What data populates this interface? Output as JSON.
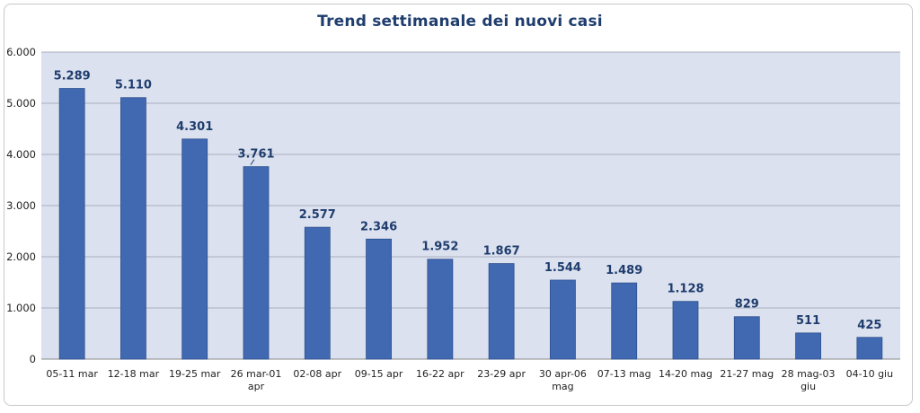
{
  "chart_data": {
    "type": "bar",
    "title": "Trend settimanale dei nuovi casi",
    "xlabel": "",
    "ylabel": "",
    "ylim": [
      0,
      6000
    ],
    "yticks": [
      0,
      1000,
      2000,
      3000,
      4000,
      5000,
      6000
    ],
    "ytick_labels": [
      "0",
      "1.000",
      "2.000",
      "3.000",
      "4.000",
      "5.000",
      "6.000"
    ],
    "grid": true,
    "legend": "none",
    "categories": [
      "05-11 mar",
      "12-18 mar",
      "19-25 mar",
      "26 mar-01 apr",
      "02-08 apr",
      "09-15 apr",
      "16-22 apr",
      "23-29 apr",
      "30 apr-06 mag",
      "07-13 mag",
      "14-20 mag",
      "21-27 mag",
      "28 mag-03 giu",
      "04-10 giu"
    ],
    "category_lines": [
      [
        "05-11 mar"
      ],
      [
        "12-18 mar"
      ],
      [
        "19-25 mar"
      ],
      [
        "26 mar-01",
        "apr"
      ],
      [
        "02-08 apr"
      ],
      [
        "09-15 apr"
      ],
      [
        "16-22 apr"
      ],
      [
        "23-29 apr"
      ],
      [
        "30 apr-06",
        "mag"
      ],
      [
        "07-13 mag"
      ],
      [
        "14-20 mag"
      ],
      [
        "21-27 mag"
      ],
      [
        "28 mag-03",
        "giu"
      ],
      [
        "04-10 giu"
      ]
    ],
    "values": [
      5289,
      5110,
      4301,
      3761,
      2577,
      2346,
      1952,
      1867,
      1544,
      1489,
      1128,
      829,
      511,
      425
    ],
    "value_labels": [
      "5.289",
      "5.110",
      "4.301",
      "3.761",
      "2.577",
      "2.346",
      "1.952",
      "1.867",
      "1.544",
      "1.489",
      "1.128",
      "829",
      "511",
      "425"
    ],
    "colors": {
      "bar": "#4169b1",
      "bar_edge": "#2c4f8f",
      "plot_bg": "#dbe1ee",
      "grid": "#a8b0c0",
      "title": "#1f3d6e",
      "data_label": "#1f3d6e"
    }
  }
}
